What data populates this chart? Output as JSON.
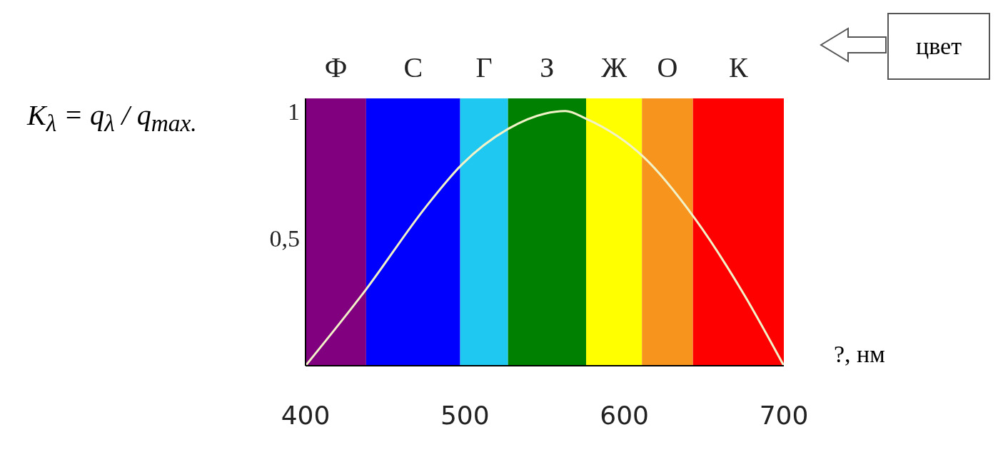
{
  "chart_data": {
    "type": "line",
    "ylabel": "K$_{λ}$ = q$_{λ}$ / q$_{max.}$",
    "xlabel": "?, нм",
    "annotations": [
      "цвет"
    ],
    "x": [
      400,
      438,
      475,
      498,
      527,
      550,
      563,
      576,
      612,
      644,
      675,
      700
    ],
    "series": [
      {
        "color": "#f2f2c8",
        "values": [
          0,
          0.3,
          0.62,
          0.79,
          0.93,
          0.99,
          1,
          0.97,
          0.82,
          0.58,
          0.28,
          0
        ]
      }
    ],
    "xlim": [
      400,
      700
    ],
    "xticks": [
      400,
      500,
      600,
      700
    ],
    "ylim": [
      0,
      1.05
    ],
    "yticks": [
      {
        "value": 0.5,
        "label": "0,5"
      },
      1
    ],
    "bands": [
      {
        "axis": "x",
        "from": 400,
        "to": 438,
        "label": "Ф",
        "color": "#800080"
      },
      {
        "axis": "x",
        "from": 438,
        "to": 497,
        "label": "С",
        "color": "#0000ff"
      },
      {
        "axis": "x",
        "from": 497,
        "to": 527,
        "label": "Г",
        "color": "#1ec8f0"
      },
      {
        "axis": "x",
        "from": 527,
        "to": 576,
        "label": "З",
        "color": "#008000"
      },
      {
        "axis": "x",
        "from": 576,
        "to": 611,
        "label": "Ж",
        "color": "#ffff00"
      },
      {
        "axis": "x",
        "from": 611,
        "to": 643,
        "label": "О",
        "color": "#f7941d"
      },
      {
        "axis": "x",
        "from": 643,
        "to": 700,
        "label": "К",
        "color": "#ff0000"
      }
    ],
    "grid": false,
    "legend": false
  }
}
